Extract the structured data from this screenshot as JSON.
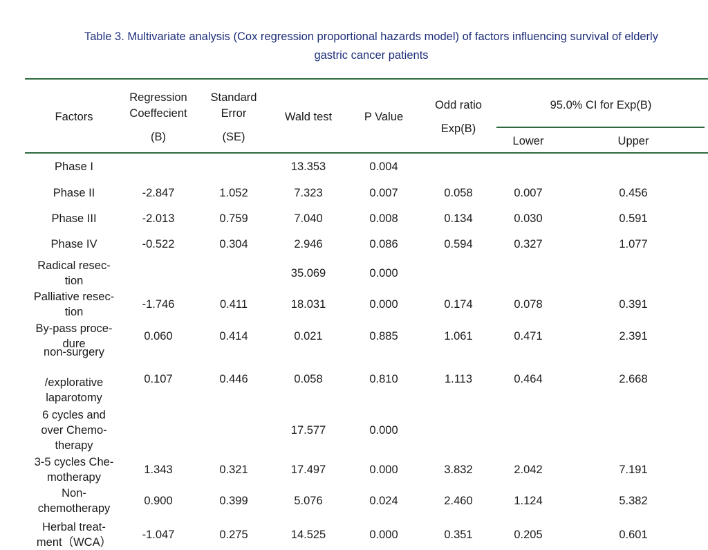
{
  "caption": {
    "line1": "Table 3. Multivariate analysis (Cox regression proportional hazards model) of factors influencing survival of elderly",
    "line2": "gastric cancer patients"
  },
  "header": {
    "factors": "Factors",
    "coef_l1": "Regression",
    "coef_l2": "Coeffecient",
    "coef_l3": "(B)",
    "se_l1": "Standard",
    "se_l2": "Error",
    "se_l3": "(SE)",
    "wald": "Wald test",
    "p": "P Value",
    "or_l1": "Odd ratio",
    "or_l2": "Exp(B)",
    "ci": "95.0% CI for Exp(B)",
    "lower": "Lower",
    "upper": "Upper"
  },
  "rows": [
    {
      "factor": [
        "Phase Ι"
      ],
      "b": "",
      "se": "",
      "wald": "13.353",
      "p": "0.004",
      "or": "",
      "lo": "",
      "hi": ""
    },
    {
      "factor": [
        "Phase ΙΙ"
      ],
      "b": "-2.847",
      "se": "1.052",
      "wald": "7.323",
      "p": "0.007",
      "or": "0.058",
      "lo": "0.007",
      "hi": "0.456"
    },
    {
      "factor": [
        "Phase ΙΙΙ"
      ],
      "b": "-2.013",
      "se": "0.759",
      "wald": "7.040",
      "p": "0.008",
      "or": "0.134",
      "lo": "0.030",
      "hi": "0.591"
    },
    {
      "factor": [
        "Phase ΙV"
      ],
      "b": "-0.522",
      "se": "0.304",
      "wald": "2.946",
      "p": "0.086",
      "or": "0.594",
      "lo": "0.327",
      "hi": "1.077"
    },
    {
      "factor": [
        "Radical resec-",
        "tion"
      ],
      "b": "",
      "se": "",
      "wald": "35.069",
      "p": "0.000",
      "or": "",
      "lo": "",
      "hi": ""
    },
    {
      "factor": [
        "Palliative resec-",
        "tion"
      ],
      "b": "-1.746",
      "se": "0.411",
      "wald": "18.031",
      "p": "0.000",
      "or": "0.174",
      "lo": "0.078",
      "hi": "0.391"
    },
    {
      "factor": [
        "By-pass proce-",
        "dure"
      ],
      "b": "0.060",
      "se": "0.414",
      "wald": "0.021",
      "p": "0.885",
      "or": "1.061",
      "lo": "0.471",
      "hi": "2.391"
    },
    {
      "factor": [
        "non-surgery",
        "",
        "/explorative",
        "laparotomy"
      ],
      "b": "0.107",
      "se": "0.446",
      "wald": "0.058",
      "p": "0.810",
      "or": "1.113",
      "lo": "0.464",
      "hi": "2.668"
    },
    {
      "factor": [
        "6 cycles and",
        "over Chemo-",
        "therapy"
      ],
      "b": "",
      "se": "",
      "wald": "17.577",
      "p": "0.000",
      "or": "",
      "lo": "",
      "hi": ""
    },
    {
      "factor": [
        "3-5 cycles Che-",
        "motherapy"
      ],
      "b": "1.343",
      "se": "0.321",
      "wald": "17.497",
      "p": "0.000",
      "or": "3.832",
      "lo": "2.042",
      "hi": "7.191"
    },
    {
      "factor": [
        "Non-",
        "chemotherapy"
      ],
      "b": "0.900",
      "se": "0.399",
      "wald": "5.076",
      "p": "0.024",
      "or": "2.460",
      "lo": "1.124",
      "hi": "5.382"
    },
    {
      "factor": [
        "Herbal treat-",
        "ment（WCA）"
      ],
      "b": "-1.047",
      "se": "0.275",
      "wald": "14.525",
      "p": "0.000",
      "or": "0.351",
      "lo": "0.205",
      "hi": "0.601"
    }
  ]
}
